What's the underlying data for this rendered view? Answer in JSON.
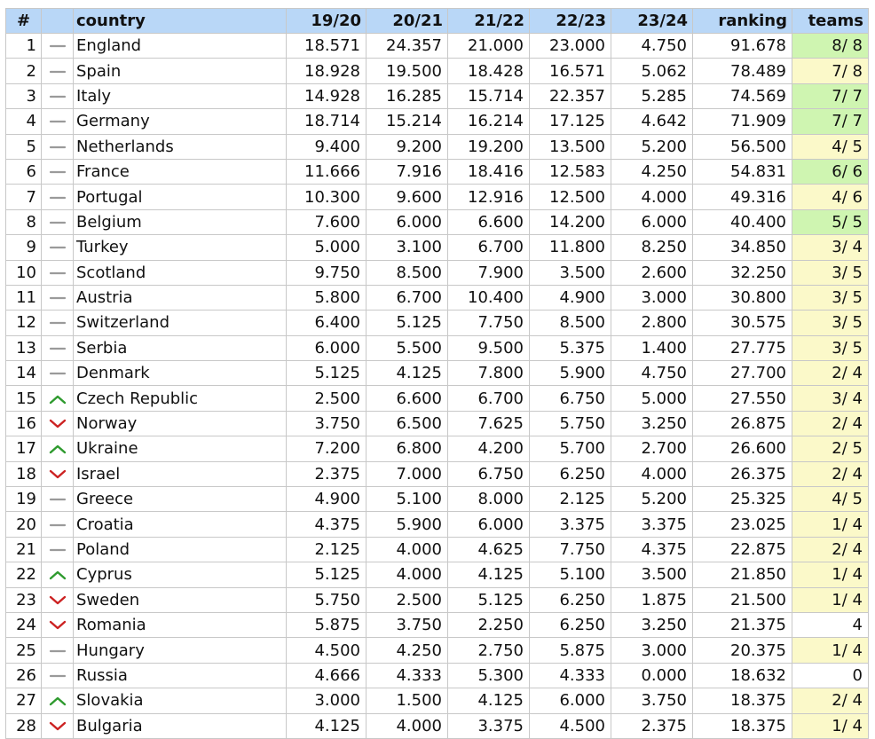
{
  "table": {
    "headers": {
      "rank": "#",
      "trend": "",
      "country": "country",
      "s1920": "19/20",
      "s2021": "20/21",
      "s2122": "21/22",
      "s2223": "22/23",
      "s2324": "23/24",
      "ranking": "ranking",
      "teams": "teams"
    },
    "colors": {
      "header_bg": "#b9d7f7",
      "teams_full": "#cff5b1",
      "teams_partial": "#fbf9c9",
      "trend_up": "#2e9a2e",
      "trend_down": "#cc2222",
      "trend_same": "#9a9a9a"
    },
    "rows": [
      {
        "rank": "1",
        "trend": "same",
        "country": "England",
        "s1920": "18.571",
        "s2021": "24.357",
        "s2122": "21.000",
        "s2223": "23.000",
        "s2324": "4.750",
        "ranking": "91.678",
        "teams": "8/ 8",
        "teams_status": "full"
      },
      {
        "rank": "2",
        "trend": "same",
        "country": "Spain",
        "s1920": "18.928",
        "s2021": "19.500",
        "s2122": "18.428",
        "s2223": "16.571",
        "s2324": "5.062",
        "ranking": "78.489",
        "teams": "7/ 8",
        "teams_status": "partial"
      },
      {
        "rank": "3",
        "trend": "same",
        "country": "Italy",
        "s1920": "14.928",
        "s2021": "16.285",
        "s2122": "15.714",
        "s2223": "22.357",
        "s2324": "5.285",
        "ranking": "74.569",
        "teams": "7/ 7",
        "teams_status": "full"
      },
      {
        "rank": "4",
        "trend": "same",
        "country": "Germany",
        "s1920": "18.714",
        "s2021": "15.214",
        "s2122": "16.214",
        "s2223": "17.125",
        "s2324": "4.642",
        "ranking": "71.909",
        "teams": "7/ 7",
        "teams_status": "full"
      },
      {
        "rank": "5",
        "trend": "same",
        "country": "Netherlands",
        "s1920": "9.400",
        "s2021": "9.200",
        "s2122": "19.200",
        "s2223": "13.500",
        "s2324": "5.200",
        "ranking": "56.500",
        "teams": "4/ 5",
        "teams_status": "partial"
      },
      {
        "rank": "6",
        "trend": "same",
        "country": "France",
        "s1920": "11.666",
        "s2021": "7.916",
        "s2122": "18.416",
        "s2223": "12.583",
        "s2324": "4.250",
        "ranking": "54.831",
        "teams": "6/ 6",
        "teams_status": "full"
      },
      {
        "rank": "7",
        "trend": "same",
        "country": "Portugal",
        "s1920": "10.300",
        "s2021": "9.600",
        "s2122": "12.916",
        "s2223": "12.500",
        "s2324": "4.000",
        "ranking": "49.316",
        "teams": "4/ 6",
        "teams_status": "partial"
      },
      {
        "rank": "8",
        "trend": "same",
        "country": "Belgium",
        "s1920": "7.600",
        "s2021": "6.000",
        "s2122": "6.600",
        "s2223": "14.200",
        "s2324": "6.000",
        "ranking": "40.400",
        "teams": "5/ 5",
        "teams_status": "full"
      },
      {
        "rank": "9",
        "trend": "same",
        "country": "Turkey",
        "s1920": "5.000",
        "s2021": "3.100",
        "s2122": "6.700",
        "s2223": "11.800",
        "s2324": "8.250",
        "ranking": "34.850",
        "teams": "3/ 4",
        "teams_status": "partial"
      },
      {
        "rank": "10",
        "trend": "same",
        "country": "Scotland",
        "s1920": "9.750",
        "s2021": "8.500",
        "s2122": "7.900",
        "s2223": "3.500",
        "s2324": "2.600",
        "ranking": "32.250",
        "teams": "3/ 5",
        "teams_status": "partial"
      },
      {
        "rank": "11",
        "trend": "same",
        "country": "Austria",
        "s1920": "5.800",
        "s2021": "6.700",
        "s2122": "10.400",
        "s2223": "4.900",
        "s2324": "3.000",
        "ranking": "30.800",
        "teams": "3/ 5",
        "teams_status": "partial"
      },
      {
        "rank": "12",
        "trend": "same",
        "country": "Switzerland",
        "s1920": "6.400",
        "s2021": "5.125",
        "s2122": "7.750",
        "s2223": "8.500",
        "s2324": "2.800",
        "ranking": "30.575",
        "teams": "3/ 5",
        "teams_status": "partial"
      },
      {
        "rank": "13",
        "trend": "same",
        "country": "Serbia",
        "s1920": "6.000",
        "s2021": "5.500",
        "s2122": "9.500",
        "s2223": "5.375",
        "s2324": "1.400",
        "ranking": "27.775",
        "teams": "3/ 5",
        "teams_status": "partial"
      },
      {
        "rank": "14",
        "trend": "same",
        "country": "Denmark",
        "s1920": "5.125",
        "s2021": "4.125",
        "s2122": "7.800",
        "s2223": "5.900",
        "s2324": "4.750",
        "ranking": "27.700",
        "teams": "2/ 4",
        "teams_status": "partial"
      },
      {
        "rank": "15",
        "trend": "up",
        "country": "Czech Republic",
        "s1920": "2.500",
        "s2021": "6.600",
        "s2122": "6.700",
        "s2223": "6.750",
        "s2324": "5.000",
        "ranking": "27.550",
        "teams": "3/ 4",
        "teams_status": "partial"
      },
      {
        "rank": "16",
        "trend": "down",
        "country": "Norway",
        "s1920": "3.750",
        "s2021": "6.500",
        "s2122": "7.625",
        "s2223": "5.750",
        "s2324": "3.250",
        "ranking": "26.875",
        "teams": "2/ 4",
        "teams_status": "partial"
      },
      {
        "rank": "17",
        "trend": "up",
        "country": "Ukraine",
        "s1920": "7.200",
        "s2021": "6.800",
        "s2122": "4.200",
        "s2223": "5.700",
        "s2324": "2.700",
        "ranking": "26.600",
        "teams": "2/ 5",
        "teams_status": "partial"
      },
      {
        "rank": "18",
        "trend": "down",
        "country": "Israel",
        "s1920": "2.375",
        "s2021": "7.000",
        "s2122": "6.750",
        "s2223": "6.250",
        "s2324": "4.000",
        "ranking": "26.375",
        "teams": "2/ 4",
        "teams_status": "partial"
      },
      {
        "rank": "19",
        "trend": "same",
        "country": "Greece",
        "s1920": "4.900",
        "s2021": "5.100",
        "s2122": "8.000",
        "s2223": "2.125",
        "s2324": "5.200",
        "ranking": "25.325",
        "teams": "4/ 5",
        "teams_status": "partial"
      },
      {
        "rank": "20",
        "trend": "same",
        "country": "Croatia",
        "s1920": "4.375",
        "s2021": "5.900",
        "s2122": "6.000",
        "s2223": "3.375",
        "s2324": "3.375",
        "ranking": "23.025",
        "teams": "1/ 4",
        "teams_status": "partial"
      },
      {
        "rank": "21",
        "trend": "same",
        "country": "Poland",
        "s1920": "2.125",
        "s2021": "4.000",
        "s2122": "4.625",
        "s2223": "7.750",
        "s2324": "4.375",
        "ranking": "22.875",
        "teams": "2/ 4",
        "teams_status": "partial"
      },
      {
        "rank": "22",
        "trend": "up",
        "country": "Cyprus",
        "s1920": "5.125",
        "s2021": "4.000",
        "s2122": "4.125",
        "s2223": "5.100",
        "s2324": "3.500",
        "ranking": "21.850",
        "teams": "1/ 4",
        "teams_status": "partial"
      },
      {
        "rank": "23",
        "trend": "down",
        "country": "Sweden",
        "s1920": "5.750",
        "s2021": "2.500",
        "s2122": "5.125",
        "s2223": "6.250",
        "s2324": "1.875",
        "ranking": "21.500",
        "teams": "1/ 4",
        "teams_status": "partial"
      },
      {
        "rank": "24",
        "trend": "down",
        "country": "Romania",
        "s1920": "5.875",
        "s2021": "3.750",
        "s2122": "2.250",
        "s2223": "6.250",
        "s2324": "3.250",
        "ranking": "21.375",
        "teams": "4",
        "teams_status": "none"
      },
      {
        "rank": "25",
        "trend": "same",
        "country": "Hungary",
        "s1920": "4.500",
        "s2021": "4.250",
        "s2122": "2.750",
        "s2223": "5.875",
        "s2324": "3.000",
        "ranking": "20.375",
        "teams": "1/ 4",
        "teams_status": "partial"
      },
      {
        "rank": "26",
        "trend": "same",
        "country": "Russia",
        "s1920": "4.666",
        "s2021": "4.333",
        "s2122": "5.300",
        "s2223": "4.333",
        "s2324": "0.000",
        "ranking": "18.632",
        "teams": "0",
        "teams_status": "none"
      },
      {
        "rank": "27",
        "trend": "up",
        "country": "Slovakia",
        "s1920": "3.000",
        "s2021": "1.500",
        "s2122": "4.125",
        "s2223": "6.000",
        "s2324": "3.750",
        "ranking": "18.375",
        "teams": "2/ 4",
        "teams_status": "partial"
      },
      {
        "rank": "28",
        "trend": "down",
        "country": "Bulgaria",
        "s1920": "4.125",
        "s2021": "4.000",
        "s2122": "3.375",
        "s2223": "4.500",
        "s2324": "2.375",
        "ranking": "18.375",
        "teams": "1/ 4",
        "teams_status": "partial"
      }
    ]
  }
}
